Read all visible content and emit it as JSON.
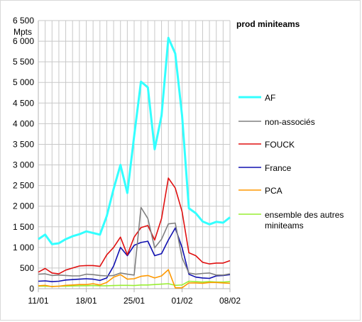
{
  "chart_data": {
    "type": "line",
    "title": "prod miniteams",
    "ylabel": "Mpts",
    "ylim": [
      0,
      6500
    ],
    "yticks": [
      0,
      500,
      1000,
      1500,
      2000,
      2500,
      3000,
      3500,
      4000,
      4500,
      5000,
      5500,
      6000,
      6500
    ],
    "ytick_labels": [
      "0",
      "500",
      "1 000",
      "1 500",
      "2 000",
      "2 500",
      "3 000",
      "3 500",
      "4 000",
      "4 500",
      "5 000",
      "5 500",
      "6 000",
      "6 500"
    ],
    "xtick_labels": [
      "11/01",
      "18/01",
      "25/01",
      "01/02",
      "08/02"
    ],
    "xtick_positions": [
      0,
      7,
      14,
      21,
      28
    ],
    "grid": true,
    "legend_position": "right",
    "series": [
      {
        "name": "AF",
        "color": "#33ffff",
        "values": [
          1200,
          1310,
          1080,
          1100,
          1200,
          1270,
          1320,
          1390,
          1350,
          1310,
          1760,
          2420,
          3000,
          2320,
          3700,
          5020,
          4880,
          3380,
          4200,
          6080,
          5700,
          4200,
          1950,
          1830,
          1630,
          1560,
          1620,
          1600,
          1730
        ]
      },
      {
        "name": "non-associés",
        "color": "#808080",
        "values": [
          350,
          360,
          320,
          330,
          320,
          310,
          310,
          350,
          340,
          320,
          310,
          320,
          380,
          350,
          330,
          1970,
          1700,
          990,
          1200,
          1570,
          1590,
          750,
          380,
          350,
          370,
          380,
          330,
          330,
          360
        ]
      },
      {
        "name": "FOUCK",
        "color": "#e01010",
        "values": [
          400,
          490,
          380,
          360,
          450,
          500,
          550,
          560,
          560,
          540,
          820,
          1000,
          1250,
          820,
          1250,
          1480,
          1530,
          1180,
          1700,
          2680,
          2440,
          1870,
          870,
          800,
          640,
          600,
          620,
          620,
          680
        ]
      },
      {
        "name": "France",
        "color": "#1010b0",
        "values": [
          180,
          190,
          170,
          180,
          210,
          220,
          230,
          240,
          230,
          200,
          260,
          550,
          1000,
          800,
          1050,
          1120,
          1150,
          800,
          850,
          1180,
          1470,
          1000,
          350,
          280,
          260,
          250,
          310,
          320,
          340
        ]
      },
      {
        "name": "PCA",
        "color": "#ff9900",
        "values": [
          70,
          80,
          50,
          60,
          80,
          90,
          100,
          100,
          120,
          90,
          150,
          280,
          340,
          230,
          240,
          300,
          320,
          260,
          310,
          460,
          20,
          20,
          140,
          140,
          130,
          150,
          150,
          140,
          130
        ]
      },
      {
        "name": "ensemble des autres miniteams",
        "color": "#99ee33",
        "values": [
          60,
          60,
          55,
          60,
          60,
          65,
          70,
          70,
          75,
          70,
          70,
          75,
          80,
          80,
          75,
          90,
          90,
          100,
          110,
          120,
          80,
          90,
          180,
          170,
          160,
          170,
          160,
          160,
          170
        ]
      }
    ]
  }
}
